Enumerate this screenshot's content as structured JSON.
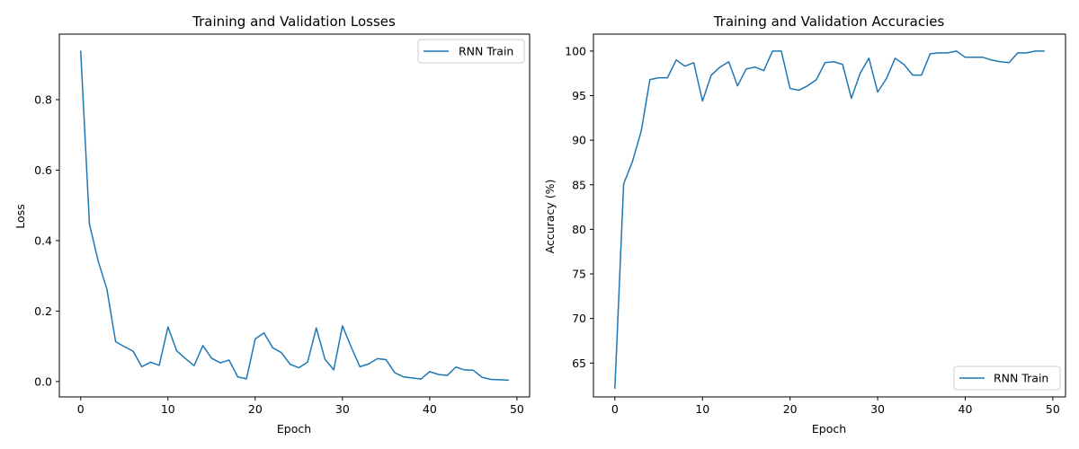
{
  "chart_data": [
    {
      "type": "line",
      "title": "Training and Validation Losses",
      "xlabel": "Epoch",
      "ylabel": "Loss",
      "xlim": [
        -2.45,
        51.45
      ],
      "ylim": [
        -0.0437,
        0.986
      ],
      "xticks": [
        0,
        10,
        20,
        30,
        40,
        50
      ],
      "yticks": [
        0.0,
        0.2,
        0.4,
        0.6,
        0.8
      ],
      "ytick_labels": [
        "0.0",
        "0.2",
        "0.4",
        "0.6",
        "0.8"
      ],
      "legend_position": "upper right",
      "grid": false,
      "series": [
        {
          "name": "RNN Train",
          "color": "#1f77b4",
          "x": [
            0,
            1,
            2,
            3,
            4,
            5,
            6,
            7,
            8,
            9,
            10,
            11,
            12,
            13,
            14,
            15,
            16,
            17,
            18,
            19,
            20,
            21,
            22,
            23,
            24,
            25,
            26,
            27,
            28,
            29,
            30,
            31,
            32,
            33,
            34,
            35,
            36,
            37,
            38,
            39,
            40,
            41,
            42,
            43,
            44,
            45,
            46,
            47,
            48,
            49
          ],
          "y": [
            0.937,
            0.447,
            0.342,
            0.262,
            0.113,
            0.099,
            0.086,
            0.042,
            0.055,
            0.046,
            0.155,
            0.087,
            0.065,
            0.045,
            0.102,
            0.066,
            0.053,
            0.061,
            0.013,
            0.008,
            0.121,
            0.138,
            0.096,
            0.082,
            0.049,
            0.039,
            0.055,
            0.152,
            0.063,
            0.033,
            0.158,
            0.098,
            0.042,
            0.05,
            0.065,
            0.062,
            0.025,
            0.013,
            0.01,
            0.007,
            0.028,
            0.02,
            0.017,
            0.041,
            0.033,
            0.032,
            0.012,
            0.006,
            0.005,
            0.004
          ]
        }
      ]
    },
    {
      "type": "line",
      "title": "Training and Validation Accuracies",
      "xlabel": "Epoch",
      "ylabel": "Accuracy (%)",
      "xlim": [
        -2.45,
        51.45
      ],
      "ylim": [
        61.2,
        101.9
      ],
      "xticks": [
        0,
        10,
        20,
        30,
        40,
        50
      ],
      "yticks": [
        65,
        70,
        75,
        80,
        85,
        90,
        95,
        100
      ],
      "ytick_labels": [
        "65",
        "70",
        "75",
        "80",
        "85",
        "90",
        "95",
        "100"
      ],
      "legend_position": "lower right",
      "grid": false,
      "series": [
        {
          "name": "RNN Train",
          "color": "#1f77b4",
          "x": [
            0,
            1,
            2,
            3,
            4,
            5,
            6,
            7,
            8,
            9,
            10,
            11,
            12,
            13,
            14,
            15,
            16,
            17,
            18,
            19,
            20,
            21,
            22,
            23,
            24,
            25,
            26,
            27,
            28,
            29,
            30,
            31,
            32,
            33,
            34,
            35,
            36,
            37,
            38,
            39,
            40,
            41,
            42,
            43,
            44,
            45,
            46,
            47,
            48,
            49
          ],
          "y": [
            62.2,
            85.1,
            87.6,
            91.0,
            96.8,
            97.0,
            97.0,
            99.0,
            98.3,
            98.7,
            94.4,
            97.3,
            98.2,
            98.8,
            96.1,
            98.0,
            98.2,
            97.8,
            100.0,
            100.0,
            95.8,
            95.6,
            96.1,
            96.8,
            98.7,
            98.8,
            98.5,
            94.7,
            97.5,
            99.2,
            95.4,
            96.9,
            99.2,
            98.5,
            97.3,
            97.3,
            99.7,
            99.8,
            99.8,
            100.0,
            99.3,
            99.3,
            99.3,
            99.0,
            98.8,
            98.7,
            99.8,
            99.8,
            100.0,
            100.0
          ]
        }
      ]
    }
  ]
}
